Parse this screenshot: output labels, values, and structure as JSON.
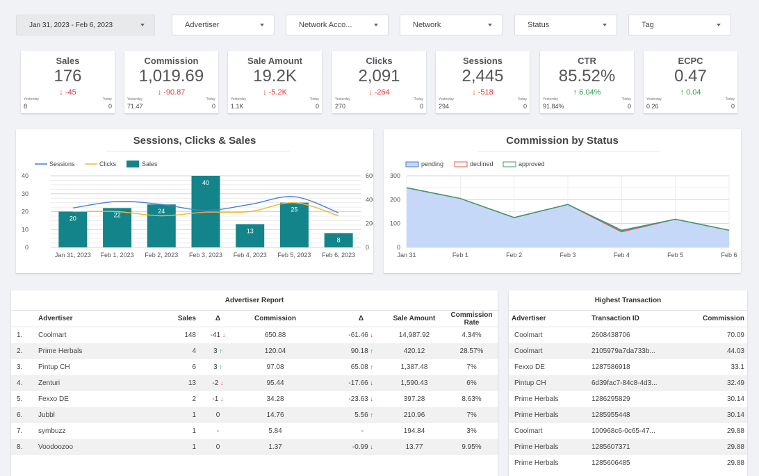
{
  "filters": {
    "date_range": "Jan 31, 2023 - Feb 6, 2023",
    "advertiser": "Advertiser",
    "network_account": "Network Acco...",
    "network": "Network",
    "status": "Status",
    "tag": "Tag"
  },
  "kpis": [
    {
      "title": "Sales",
      "value": "176",
      "delta": "-45",
      "dir": "down",
      "yesterday_label": "Yesterday",
      "yesterday": "8",
      "today_label": "Today",
      "today": "0"
    },
    {
      "title": "Commission",
      "value": "1,019.69",
      "delta": "-90.87",
      "dir": "down",
      "yesterday_label": "Yesterday",
      "yesterday": "71.47",
      "today_label": "Today",
      "today": "0"
    },
    {
      "title": "Sale Amount",
      "value": "19.2K",
      "delta": "-5.2K",
      "dir": "down",
      "yesterday_label": "Yesterday",
      "yesterday": "1.1K",
      "today_label": "Today",
      "today": "0"
    },
    {
      "title": "Clicks",
      "value": "2,091",
      "delta": "-264",
      "dir": "down",
      "yesterday_label": "Yesterday",
      "yesterday": "270",
      "today_label": "Today",
      "today": "0"
    },
    {
      "title": "Sessions",
      "value": "2,445",
      "delta": "-518",
      "dir": "down",
      "yesterday_label": "Yesterday",
      "yesterday": "294",
      "today_label": "Today",
      "today": "0"
    },
    {
      "title": "CTR",
      "value": "85.52%",
      "delta": "6.04%",
      "dir": "up",
      "yesterday_label": "Yesterday",
      "yesterday": "91.84%",
      "today_label": "Today",
      "today": "0"
    },
    {
      "title": "ECPC",
      "value": "0.47",
      "delta": "0.04",
      "dir": "up",
      "yesterday_label": "Yesterday",
      "yesterday": "0.26",
      "today_label": "Today",
      "today": "0"
    }
  ],
  "chart_data": [
    {
      "type": "bar",
      "title": "Sessions, Clicks & Sales",
      "categories": [
        "Jan 31, 2023",
        "Feb 1, 2023",
        "Feb 2, 2023",
        "Feb 3, 2023",
        "Feb 4, 2023",
        "Feb 5, 2023",
        "Feb 6, 2023"
      ],
      "series": [
        {
          "name": "Sessions",
          "type": "line",
          "axis": "right",
          "color": "#4a7fd6",
          "values": [
            330,
            385,
            360,
            310,
            360,
            425,
            290
          ]
        },
        {
          "name": "Clicks",
          "type": "line",
          "axis": "right",
          "color": "#f2b632",
          "values": [
            300,
            300,
            265,
            295,
            300,
            375,
            265
          ]
        },
        {
          "name": "Sales",
          "type": "bar",
          "axis": "left",
          "color": "#13858a",
          "values": [
            20,
            22,
            24,
            40,
            13,
            25,
            8
          ]
        }
      ],
      "ylim_left": [
        0,
        40
      ],
      "yticks_left": [
        0,
        10,
        20,
        30,
        40
      ],
      "ylim_right": [
        0,
        600
      ],
      "yticks_right": [
        0,
        200,
        400,
        600
      ],
      "legend": "top-left",
      "grid": true
    },
    {
      "type": "area",
      "title": "Commission by Status",
      "categories": [
        "Jan 31",
        "Feb 1",
        "Feb 2",
        "Feb 3",
        "Feb 4",
        "Feb 5",
        "Feb 6"
      ],
      "series": [
        {
          "name": "pending",
          "color": "#4a7fd6",
          "fill": "#c6d8f7",
          "values": [
            250,
            205,
            125,
            180,
            72,
            118,
            72
          ]
        },
        {
          "name": "declined",
          "color": "#e05a4f",
          "values": [
            250,
            205,
            125,
            180,
            65,
            118,
            72
          ]
        },
        {
          "name": "approved",
          "color": "#3b9c6a",
          "values": [
            250,
            205,
            125,
            180,
            70,
            118,
            72
          ]
        }
      ],
      "ylim": [
        0,
        300
      ],
      "yticks": [
        0,
        100,
        200,
        300
      ],
      "legend": "top-left",
      "grid": true
    }
  ],
  "advertiser_report": {
    "title": "Advertiser Report",
    "columns": [
      "",
      "Advertiser",
      "Sales",
      "Δ",
      "Commission",
      "Δ",
      "Sale Amount",
      "Commission Rate"
    ],
    "rows": [
      {
        "n": "1.",
        "name": "Coolmart",
        "sales": "148",
        "sd": "-41",
        "sdir": "down",
        "comm": "650.88",
        "cd": "-61.46",
        "cdir": "down",
        "amount": "14,987.92",
        "rate": "4.34%"
      },
      {
        "n": "2.",
        "name": "Prime Herbals",
        "sales": "4",
        "sd": "3",
        "sdir": "up",
        "comm": "120.04",
        "cd": "90.18",
        "cdir": "up",
        "amount": "420.12",
        "rate": "28.57%"
      },
      {
        "n": "3.",
        "name": "Pintup CH",
        "sales": "6",
        "sd": "3",
        "sdir": "up",
        "comm": "97.08",
        "cd": "65.08",
        "cdir": "up",
        "amount": "1,387.48",
        "rate": "7%"
      },
      {
        "n": "4.",
        "name": "Zenturi",
        "sales": "13",
        "sd": "-2",
        "sdir": "down",
        "comm": "95.44",
        "cd": "-17.66",
        "cdir": "down",
        "amount": "1,590.43",
        "rate": "6%"
      },
      {
        "n": "5.",
        "name": "Fexxo DE",
        "sales": "2",
        "sd": "-1",
        "sdir": "down",
        "comm": "34.28",
        "cd": "-23.63",
        "cdir": "down",
        "amount": "397.28",
        "rate": "8.63%"
      },
      {
        "n": "6.",
        "name": "Jubbl",
        "sales": "1",
        "sd": "0",
        "sdir": "",
        "comm": "14.76",
        "cd": "5.56",
        "cdir": "up",
        "amount": "210.96",
        "rate": "7%"
      },
      {
        "n": "7.",
        "name": "symbuzz",
        "sales": "1",
        "sd": "-",
        "sdir": "",
        "comm": "5.84",
        "cd": "-",
        "cdir": "",
        "amount": "194.84",
        "rate": "3%"
      },
      {
        "n": "8.",
        "name": "Voodoozoo",
        "sales": "1",
        "sd": "0",
        "sdir": "",
        "comm": "1.37",
        "cd": "-0.99",
        "cdir": "down",
        "amount": "13.77",
        "rate": "9.95%"
      }
    ]
  },
  "highest_transaction": {
    "title": "Highest Transaction",
    "columns": [
      "Advertiser",
      "Transaction ID",
      "Commission"
    ],
    "rows": [
      {
        "adv": "Coolmart",
        "tid": "2608438706",
        "comm": "70.09"
      },
      {
        "adv": "Coolmart",
        "tid": "2105979a7da733b...",
        "comm": "44.03"
      },
      {
        "adv": "Fexxo DE",
        "tid": "1287586918",
        "comm": "33.1"
      },
      {
        "adv": "Pintup CH",
        "tid": "6d39fac7-84c8-4d3...",
        "comm": "32.49"
      },
      {
        "adv": "Prime Herbals",
        "tid": "1286295829",
        "comm": "30.14"
      },
      {
        "adv": "Prime Herbals",
        "tid": "1285955448",
        "comm": "30.14"
      },
      {
        "adv": "Coolmart",
        "tid": "100968c6-0c65-47...",
        "comm": "29.88"
      },
      {
        "adv": "Prime Herbals",
        "tid": "1285607371",
        "comm": "29.88"
      },
      {
        "adv": "Prime Herbals",
        "tid": "1285606485",
        "comm": "29.88"
      }
    ]
  }
}
